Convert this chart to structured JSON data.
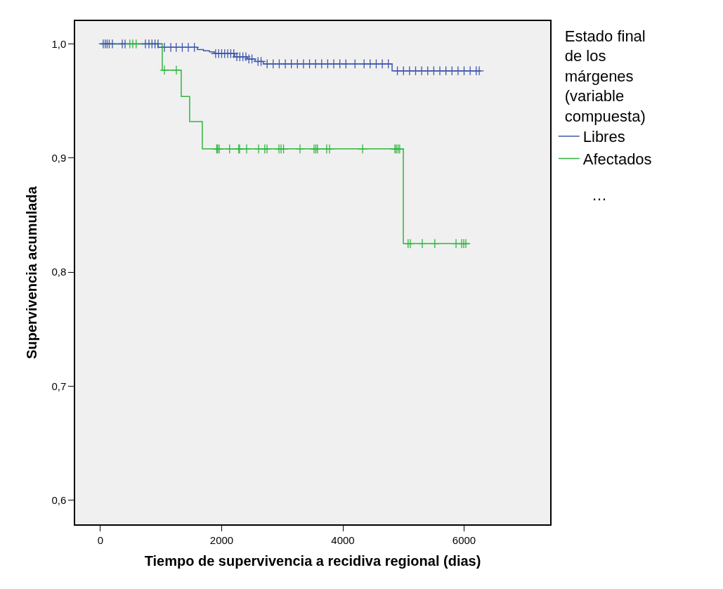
{
  "chart_data": {
    "type": "step",
    "xlabel": "Tiempo de supervivencia a recidiva regional (dias)",
    "ylabel": "Supervivencia acumulada",
    "legend_title": "Estado final\nde los\nmárgenes\n(variable\ncompuesta)",
    "legend": "right",
    "grid": false,
    "line_style": "solid",
    "xlim": [
      -417,
      7420
    ],
    "xticks": [
      0,
      2000,
      4000,
      6000
    ],
    "ylim": [
      0.579,
      1.02
    ],
    "yticks": [
      {
        "value": 0.6,
        "label": "0,6"
      },
      {
        "value": 0.7,
        "label": "0,7"
      },
      {
        "value": 0.8,
        "label": "0,8"
      },
      {
        "value": 0.9,
        "label": "0,9"
      },
      {
        "value": 1.0,
        "label": "1,0"
      }
    ],
    "annotations": [
      "…"
    ],
    "series": [
      {
        "name": "Libres",
        "color": "#3e56ad",
        "x": [
          0,
          950,
          1600,
          1700,
          1800,
          1878,
          2214,
          2423,
          2551,
          2690,
          4812,
          6284
        ],
        "values": [
          1.0,
          0.997,
          0.995,
          0.994,
          0.993,
          0.9915,
          0.9887,
          0.9868,
          0.9846,
          0.9825,
          0.9764,
          0.9764
        ]
      },
      {
        "name": "Afectados",
        "color": "#2fb53f",
        "x": [
          0,
          1020,
          1333,
          1472,
          1681,
          4997,
          6087
        ],
        "values": [
          1.0,
          0.977,
          0.954,
          0.932,
          0.908,
          0.825,
          0.825
        ]
      },
      {
        "type": "scatter",
        "marker": "cross",
        "color": "#3e56ad",
        "x": [
          46,
          80,
          110,
          145,
          197,
          360,
          406,
          742,
          800,
          850,
          900,
          950,
          1055,
          1160,
          1250,
          1350,
          1450,
          1550,
          1900,
          1950,
          2000,
          2050,
          2100,
          2150,
          2200,
          2250,
          2300,
          2350,
          2400,
          2450,
          2500,
          2600,
          2650,
          2750,
          2850,
          2950,
          3050,
          3150,
          3250,
          3350,
          3450,
          3550,
          3650,
          3750,
          3850,
          3950,
          4050,
          4200,
          4350,
          4450,
          4550,
          4650,
          4750,
          4900,
          5000,
          5100,
          5200,
          5300,
          5400,
          5500,
          5600,
          5700,
          5800,
          5900,
          6000,
          6100,
          6200,
          6250
        ],
        "values": [
          1.0,
          1.0,
          1.0,
          1.0,
          1.0,
          1.0,
          1.0,
          1.0,
          1.0,
          1.0,
          1.0,
          1.0,
          0.997,
          0.997,
          0.997,
          0.997,
          0.997,
          0.997,
          0.9915,
          0.9915,
          0.9915,
          0.9915,
          0.9915,
          0.9915,
          0.9915,
          0.9887,
          0.9887,
          0.9887,
          0.9887,
          0.9868,
          0.9868,
          0.9846,
          0.9846,
          0.9825,
          0.9825,
          0.9825,
          0.9825,
          0.9825,
          0.9825,
          0.9825,
          0.9825,
          0.9825,
          0.9825,
          0.9825,
          0.9825,
          0.9825,
          0.9825,
          0.9825,
          0.9825,
          0.9825,
          0.9825,
          0.9825,
          0.9825,
          0.9764,
          0.9764,
          0.9764,
          0.9764,
          0.9764,
          0.9764,
          0.9764,
          0.9764,
          0.9764,
          0.9764,
          0.9764,
          0.9764,
          0.9764,
          0.9764,
          0.9764
        ]
      },
      {
        "type": "scatter",
        "marker": "cross",
        "color": "#2fb53f",
        "x": [
          485,
          533,
          589,
          1055,
          1252,
          1919,
          1934,
          1959,
          2131,
          2281,
          2296,
          2412,
          2609,
          2711,
          2748,
          2945,
          2980,
          3021,
          3293,
          3525,
          3554,
          3580,
          3733,
          3780,
          4325,
          4858,
          4881,
          4910,
          4937,
          5076,
          5113,
          5310,
          5516,
          5867,
          5960,
          5994,
          6029
        ],
        "values": [
          1.0,
          1.0,
          1.0,
          0.977,
          0.977,
          0.908,
          0.908,
          0.908,
          0.908,
          0.908,
          0.908,
          0.908,
          0.908,
          0.908,
          0.908,
          0.908,
          0.908,
          0.908,
          0.908,
          0.908,
          0.908,
          0.908,
          0.908,
          0.908,
          0.908,
          0.908,
          0.908,
          0.908,
          0.908,
          0.825,
          0.825,
          0.825,
          0.825,
          0.825,
          0.825,
          0.825,
          0.825
        ]
      }
    ]
  }
}
